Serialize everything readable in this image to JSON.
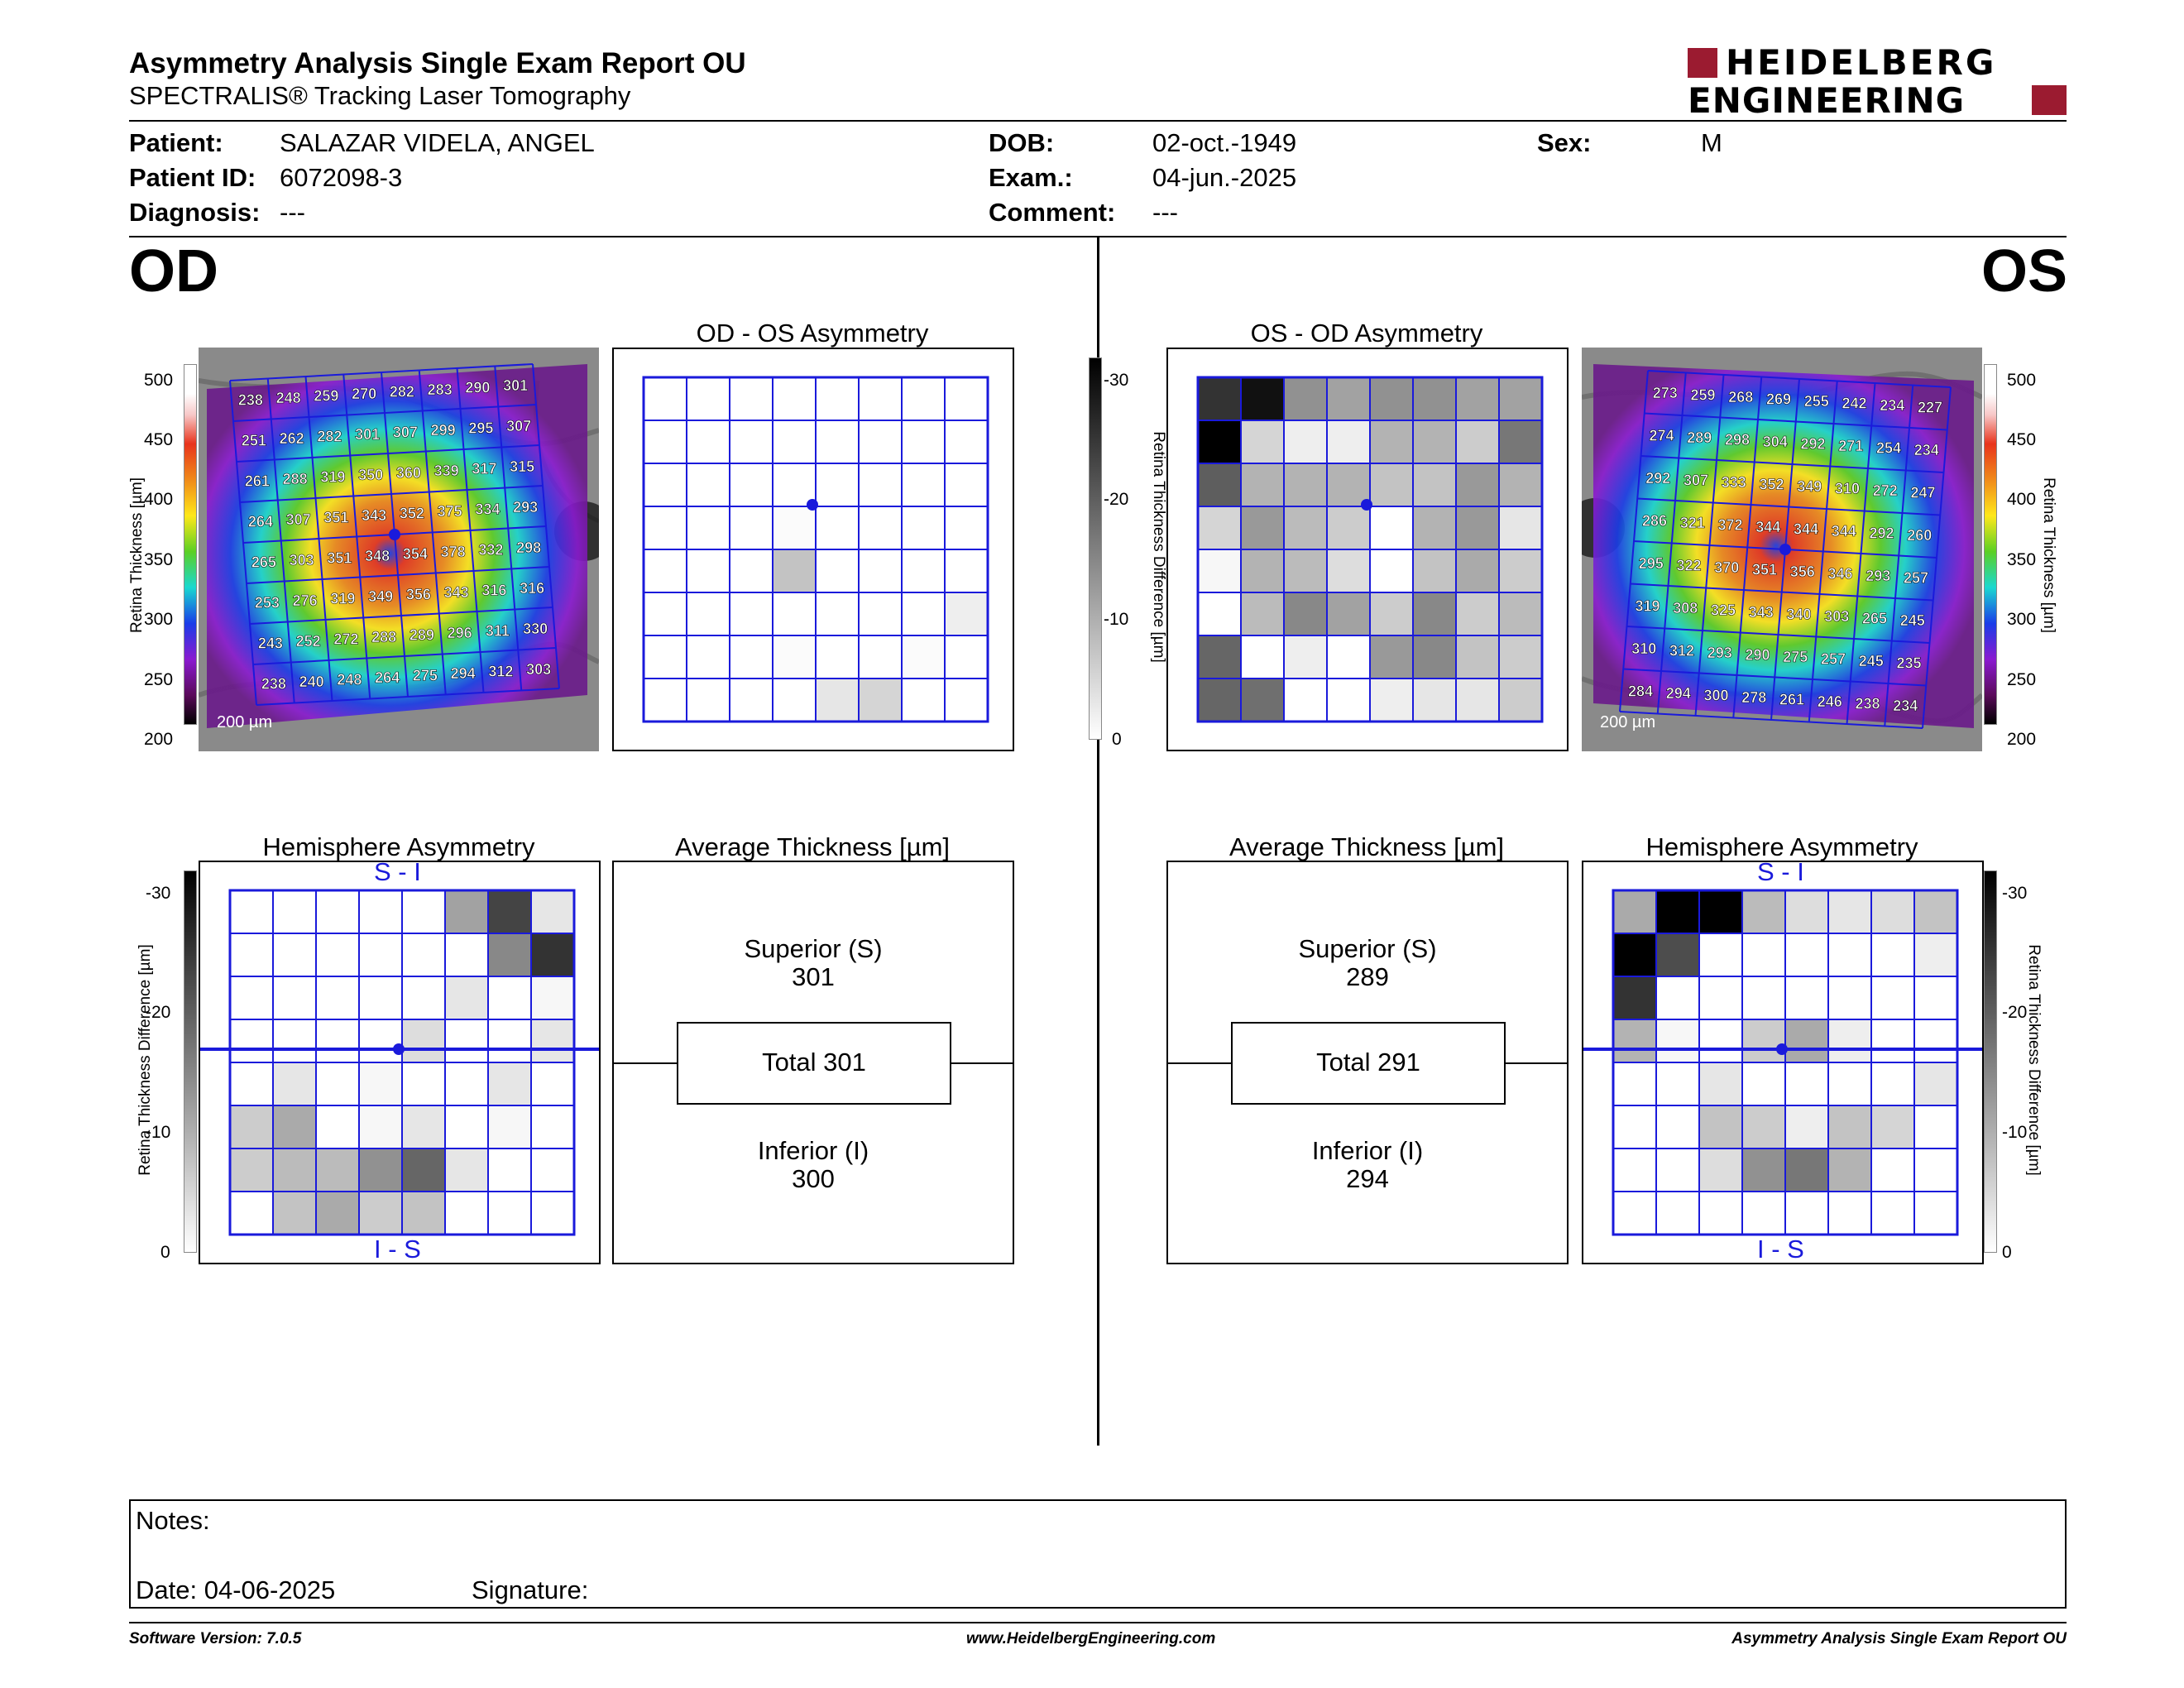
{
  "header": {
    "title": "Asymmetry Analysis Single Exam Report OU",
    "subtitle": "SPECTRALIS® Tracking Laser Tomography",
    "logo_line1": "HEIDELBERG",
    "logo_line2": "ENGINEERING",
    "brand_color": "#9b1b30"
  },
  "patient": {
    "patient_label": "Patient:",
    "patient_value": "SALAZAR VIDELA, ANGEL",
    "id_label": "Patient ID:",
    "id_value": "6072098-3",
    "diagnosis_label": "Diagnosis:",
    "diagnosis_value": "---",
    "dob_label": "DOB:",
    "dob_value": "02-oct.-1949",
    "exam_label": "Exam.:",
    "exam_value": "04-jun.-2025",
    "comment_label": "Comment:",
    "comment_value": "---",
    "sex_label": "Sex:",
    "sex_value": "M"
  },
  "od": {
    "eye_label": "OD",
    "asym_title": "OD - OS Asymmetry",
    "hemi_title": "Hemisphere Asymmetry",
    "avg_title": "Average Thickness [µm]",
    "superior_label": "Superior (S)",
    "superior_value": "301",
    "total_text": "Total 301",
    "inferior_label": "Inferior (I)",
    "inferior_value": "300",
    "hemi_top": "S - I",
    "hemi_bottom": "I - S",
    "scale_label": "200 µm",
    "thickness_grid": [
      [
        238,
        248,
        259,
        270,
        282,
        283,
        290,
        301
      ],
      [
        251,
        262,
        282,
        301,
        307,
        299,
        295,
        307
      ],
      [
        261,
        288,
        319,
        350,
        360,
        339,
        317,
        315
      ],
      [
        264,
        307,
        351,
        343,
        352,
        375,
        334,
        293
      ],
      [
        265,
        303,
        351,
        348,
        354,
        378,
        332,
        298
      ],
      [
        253,
        276,
        319,
        349,
        356,
        343,
        316,
        316
      ],
      [
        243,
        252,
        272,
        288,
        289,
        296,
        311,
        330
      ],
      [
        238,
        240,
        248,
        264,
        275,
        294,
        312,
        303
      ]
    ],
    "asym_grid": [
      [
        0,
        0,
        0,
        0,
        0,
        0,
        0,
        0
      ],
      [
        0,
        0,
        0,
        0,
        0,
        0,
        0,
        0
      ],
      [
        0,
        0,
        0,
        0,
        0,
        0,
        0,
        0
      ],
      [
        0,
        0,
        0,
        0.5,
        0,
        0,
        0,
        0
      ],
      [
        0,
        0,
        0,
        7,
        0,
        0,
        0,
        0
      ],
      [
        0,
        0,
        0,
        0,
        0,
        0,
        0,
        2
      ],
      [
        0,
        0,
        0,
        0.5,
        0,
        0,
        0.5,
        0
      ],
      [
        0,
        0,
        0,
        0,
        3,
        5,
        0,
        0
      ]
    ],
    "hemi_grid": [
      [
        0,
        0,
        0,
        0,
        0,
        11,
        22,
        3
      ],
      [
        0,
        0,
        0,
        0,
        0,
        0,
        14,
        24
      ],
      [
        0,
        0,
        0,
        0,
        0,
        3,
        0,
        1
      ],
      [
        0,
        0,
        0,
        0,
        4,
        0,
        0,
        3
      ],
      [
        0,
        3,
        0,
        1,
        0,
        0,
        3,
        0
      ],
      [
        6,
        10,
        0,
        1,
        3,
        0,
        1,
        0
      ],
      [
        6,
        8,
        8,
        13,
        18,
        3,
        0,
        0
      ],
      [
        0,
        7,
        10,
        6,
        7,
        0,
        0,
        0
      ]
    ]
  },
  "os": {
    "eye_label": "OS",
    "asym_title": "OS - OD Asymmetry",
    "hemi_title": "Hemisphere Asymmetry",
    "avg_title": "Average Thickness [µm]",
    "superior_label": "Superior (S)",
    "superior_value": "289",
    "total_text": "Total 291",
    "inferior_label": "Inferior (I)",
    "inferior_value": "294",
    "hemi_top": "S - I",
    "hemi_bottom": "I - S",
    "scale_label": "200 µm",
    "thickness_grid": [
      [
        273,
        259,
        268,
        269,
        255,
        242,
        234,
        227
      ],
      [
        274,
        289,
        298,
        304,
        292,
        271,
        254,
        234
      ],
      [
        292,
        307,
        333,
        352,
        349,
        310,
        272,
        247
      ],
      [
        286,
        321,
        372,
        344,
        344,
        344,
        292,
        260
      ],
      [
        295,
        322,
        370,
        351,
        356,
        346,
        293,
        257
      ],
      [
        319,
        308,
        325,
        343,
        340,
        303,
        265,
        245
      ],
      [
        310,
        312,
        293,
        290,
        275,
        257,
        245,
        235
      ],
      [
        284,
        294,
        300,
        278,
        261,
        246,
        238,
        234
      ]
    ],
    "asym_grid": [
      [
        24,
        28,
        13,
        11,
        13,
        13,
        11,
        11
      ],
      [
        30,
        5,
        2,
        2,
        9,
        9,
        6,
        16
      ],
      [
        19,
        9,
        9,
        9,
        7,
        7,
        12,
        9
      ],
      [
        5,
        12,
        8,
        6,
        0,
        9,
        12,
        3
      ],
      [
        1,
        9,
        8,
        4,
        0,
        7,
        10,
        6
      ],
      [
        0,
        8,
        14,
        11,
        6,
        14,
        6,
        8
      ],
      [
        18,
        0,
        2,
        0,
        12,
        14,
        7,
        6
      ],
      [
        18,
        17,
        0,
        0,
        2,
        3,
        3,
        6
      ]
    ],
    "hemi_grid": [
      [
        10,
        30,
        30,
        8,
        4,
        3,
        4,
        7
      ],
      [
        30,
        21,
        0,
        0,
        0,
        0,
        0,
        2
      ],
      [
        24,
        0,
        0,
        0,
        0,
        0,
        0,
        0
      ],
      [
        9,
        1,
        0,
        6,
        10,
        2,
        0,
        0
      ],
      [
        0,
        0,
        3,
        0,
        0,
        0,
        0,
        3
      ],
      [
        0,
        0,
        7,
        6,
        2,
        7,
        5,
        0
      ],
      [
        0,
        0,
        4,
        13,
        16,
        9,
        0,
        0
      ],
      [
        0,
        0,
        0,
        0,
        0,
        0,
        0,
        0
      ]
    ]
  },
  "scales": {
    "thickness_axis_label": "Retina Thickness [µm]",
    "thickness_ticks": [
      "500",
      "450",
      "400",
      "350",
      "300",
      "250",
      "200"
    ],
    "diff_axis_label": "Retina Thickness Difference [µm]",
    "diff_ticks": [
      "-30",
      "-20",
      "-10",
      "0"
    ]
  },
  "notes": {
    "notes_label": "Notes:",
    "date_label": "Date: 04-06-2025",
    "signature_label": "Signature:"
  },
  "footer": {
    "software": "Software Version: 7.0.5",
    "website": "www.HeidelbergEngineering.com",
    "report_name": "Asymmetry Analysis Single Exam Report OU"
  }
}
